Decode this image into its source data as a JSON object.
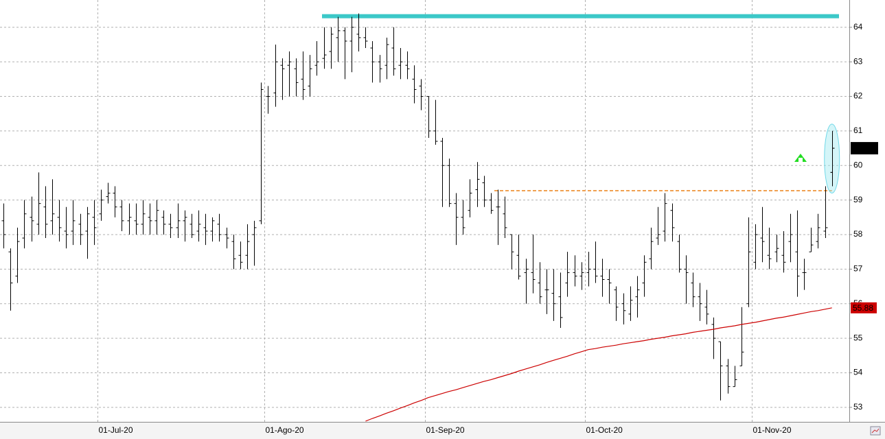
{
  "chart_data": {
    "type": "ohlc",
    "categories": [
      null,
      null,
      null,
      null,
      null,
      null,
      null,
      null,
      null,
      null,
      null,
      null,
      null,
      null,
      "01-Jul-20",
      null,
      null,
      null,
      null,
      null,
      null,
      null,
      null,
      null,
      null,
      null,
      null,
      null,
      null,
      null,
      null,
      null,
      null,
      null,
      null,
      null,
      null,
      null,
      "01-Ago-20",
      null,
      null,
      null,
      null,
      null,
      null,
      null,
      null,
      null,
      null,
      null,
      null,
      null,
      null,
      null,
      null,
      null,
      null,
      null,
      null,
      null,
      null,
      "01-Sep-20",
      null,
      null,
      null,
      null,
      null,
      null,
      null,
      null,
      null,
      null,
      null,
      null,
      null,
      null,
      null,
      null,
      null,
      null,
      null,
      null,
      null,
      null,
      "01-Oct-20",
      null,
      null,
      null,
      null,
      null,
      null,
      null,
      null,
      null,
      null,
      null,
      null,
      null,
      null,
      null,
      null,
      null,
      null,
      null,
      null,
      null,
      null,
      null,
      "01-Nov-20",
      null,
      null,
      null,
      null,
      null,
      null,
      null,
      null,
      null,
      null,
      null
    ],
    "series": [
      {
        "type": "ohlc",
        "color": "#000000",
        "open": [
          58.4,
          57.5,
          56.8,
          57.9,
          58.5,
          58.3,
          58.8,
          58.4,
          58.5,
          58.1,
          58.1,
          58.3,
          58.1,
          58.5,
          58.6,
          59.1,
          59.2,
          58.8,
          58.4,
          58.4,
          58.3,
          58.5,
          58.4,
          58.5,
          58.3,
          58.2,
          58.4,
          58.3,
          58.1,
          58.2,
          58.1,
          58.3,
          58.0,
          57.8,
          57.4,
          57.4,
          58.0,
          58.4,
          62.0,
          62.1,
          62.9,
          62.9,
          62.8,
          62.5,
          62.3,
          62.9,
          63.1,
          63.3,
          63.7,
          63.9,
          63.6,
          63.8,
          63.7,
          63.4,
          63.0,
          62.9,
          63.4,
          62.9,
          62.9,
          62.5,
          62.3,
          62.0,
          61.0,
          60.7,
          60.0,
          58.9,
          58.5,
          58.7,
          59.3,
          59.5,
          59.0,
          58.8,
          58.6,
          58.0,
          57.4,
          56.9,
          56.9,
          56.6,
          56.4,
          56.3,
          56.2,
          56.6,
          56.9,
          56.8,
          56.9,
          57.0,
          56.8,
          56.7,
          56.4,
          56.0,
          55.7,
          56.2,
          56.6,
          57.3,
          57.9,
          58.1,
          58.7,
          57.8,
          57.0,
          56.6,
          56.2,
          55.9,
          55.4,
          54.9,
          54.2,
          53.6,
          54.2,
          56.0,
          57.2,
          57.9,
          57.4,
          57.5,
          57.4,
          57.8,
          57.5,
          56.9,
          57.5,
          57.8,
          58.1,
          59.8
        ],
        "high": [
          58.9,
          57.6,
          58.2,
          59.0,
          59.1,
          59.8,
          59.4,
          59.6,
          59.0,
          58.8,
          59.0,
          58.6,
          58.8,
          59.0,
          59.3,
          59.5,
          59.4,
          59.0,
          58.9,
          58.9,
          59.0,
          58.9,
          59.0,
          58.7,
          58.6,
          58.9,
          58.7,
          58.6,
          58.7,
          58.6,
          58.5,
          58.6,
          58.2,
          58.0,
          57.8,
          58.3,
          58.4,
          62.4,
          62.3,
          63.5,
          63.1,
          63.3,
          63.1,
          63.3,
          63.2,
          63.6,
          64.0,
          64.0,
          64.3,
          64.0,
          64.3,
          64.4,
          64.0,
          63.6,
          63.2,
          63.7,
          64.0,
          63.4,
          63.3,
          62.9,
          62.5,
          62.0,
          61.9,
          60.8,
          60.2,
          59.2,
          59.0,
          59.6,
          60.1,
          59.7,
          59.2,
          59.3,
          59.1,
          58.0,
          58.0,
          57.3,
          58.0,
          57.2,
          57.0,
          57.0,
          56.9,
          57.5,
          57.4,
          57.2,
          57.5,
          57.8,
          57.3,
          57.0,
          56.5,
          56.3,
          56.5,
          56.8,
          57.4,
          58.2,
          58.8,
          59.2,
          58.9,
          58.0,
          57.4,
          56.9,
          56.6,
          56.4,
          55.6,
          54.9,
          54.4,
          54.2,
          55.9,
          58.5,
          58.3,
          58.8,
          58.2,
          58.0,
          58.1,
          58.6,
          58.7,
          57.3,
          58.2,
          58.6,
          59.4,
          61.0
        ],
        "low": [
          57.6,
          55.8,
          56.6,
          57.6,
          57.8,
          58.0,
          57.9,
          58.0,
          57.8,
          57.6,
          57.7,
          57.7,
          57.3,
          57.7,
          58.4,
          58.9,
          58.5,
          58.1,
          58.0,
          58.0,
          58.0,
          58.0,
          58.0,
          58.0,
          57.9,
          57.9,
          57.8,
          57.9,
          57.8,
          57.7,
          57.8,
          57.8,
          57.6,
          57.0,
          57.0,
          57.0,
          57.1,
          58.3,
          61.5,
          61.7,
          61.9,
          62.0,
          62.0,
          61.9,
          62.0,
          62.6,
          62.8,
          62.8,
          63.0,
          62.5,
          62.7,
          63.3,
          63.4,
          62.4,
          62.4,
          62.5,
          62.6,
          62.5,
          62.5,
          61.8,
          61.6,
          60.8,
          60.6,
          58.8,
          58.8,
          57.7,
          58.0,
          58.5,
          58.8,
          58.8,
          58.6,
          57.7,
          57.9,
          57.0,
          56.7,
          56.0,
          56.3,
          56.0,
          55.7,
          55.5,
          55.3,
          56.2,
          56.5,
          56.4,
          56.5,
          56.6,
          56.2,
          56.0,
          55.5,
          55.4,
          55.5,
          55.6,
          56.2,
          57.0,
          57.7,
          57.8,
          57.8,
          56.9,
          56.0,
          55.9,
          55.5,
          55.4,
          54.4,
          53.2,
          53.4,
          53.6,
          54.2,
          55.9,
          57.0,
          57.2,
          57.0,
          57.2,
          56.9,
          57.2,
          56.2,
          56.4,
          57.5,
          57.6,
          57.9,
          59.4
        ],
        "close": [
          58.0,
          56.6,
          57.8,
          58.6,
          58.4,
          58.9,
          58.3,
          58.6,
          58.2,
          58.0,
          58.4,
          58.0,
          58.6,
          58.2,
          59.0,
          59.2,
          58.8,
          58.4,
          58.5,
          58.3,
          58.6,
          58.4,
          58.7,
          58.3,
          58.2,
          58.4,
          58.5,
          58.0,
          58.3,
          58.1,
          58.4,
          58.0,
          57.9,
          57.3,
          57.2,
          57.8,
          58.2,
          62.2,
          62.0,
          63.0,
          62.8,
          63.0,
          62.4,
          62.2,
          62.8,
          63.0,
          63.2,
          63.8,
          63.9,
          63.6,
          64.0,
          63.7,
          63.6,
          63.0,
          62.8,
          63.5,
          62.8,
          63.0,
          62.8,
          62.2,
          62.0,
          61.0,
          60.7,
          60.0,
          58.9,
          58.5,
          58.2,
          59.2,
          59.6,
          59.0,
          58.7,
          58.8,
          58.2,
          57.5,
          56.8,
          57.0,
          56.7,
          56.2,
          56.4,
          56.0,
          55.6,
          56.9,
          56.8,
          56.9,
          57.0,
          56.8,
          56.7,
          56.6,
          55.9,
          55.8,
          56.1,
          56.4,
          57.2,
          57.8,
          58.0,
          58.9,
          58.2,
          57.0,
          56.9,
          56.2,
          56.0,
          55.7,
          55.0,
          54.2,
          53.6,
          53.8,
          54.6,
          57.5,
          58.0,
          57.8,
          57.3,
          57.6,
          57.2,
          58.0,
          56.8,
          56.9,
          57.7,
          58.2,
          58.2,
          60.5
        ]
      },
      {
        "type": "line",
        "color": "#cc0000",
        "values": [
          null,
          null,
          null,
          null,
          null,
          null,
          null,
          null,
          null,
          null,
          null,
          null,
          null,
          null,
          null,
          null,
          null,
          null,
          null,
          null,
          null,
          null,
          null,
          null,
          null,
          null,
          null,
          null,
          null,
          null,
          null,
          null,
          null,
          null,
          null,
          null,
          null,
          null,
          null,
          null,
          null,
          null,
          null,
          null,
          null,
          null,
          null,
          null,
          null,
          null,
          null,
          null,
          52.6,
          52.68,
          52.75,
          52.83,
          52.9,
          52.98,
          53.05,
          53.13,
          53.2,
          53.28,
          53.34,
          53.4,
          53.46,
          53.51,
          53.57,
          53.63,
          53.69,
          53.75,
          53.8,
          53.86,
          53.92,
          53.98,
          54.05,
          54.11,
          54.17,
          54.23,
          54.3,
          54.36,
          54.42,
          54.48,
          54.55,
          54.61,
          54.67,
          54.7,
          54.74,
          54.77,
          54.8,
          54.84,
          54.87,
          54.9,
          54.93,
          54.97,
          55.0,
          55.03,
          55.07,
          55.1,
          55.13,
          55.17,
          55.2,
          55.23,
          55.26,
          55.3,
          55.33,
          55.36,
          55.4,
          55.43,
          55.46,
          55.5,
          55.54,
          55.58,
          55.61,
          55.65,
          55.69,
          55.73,
          55.77,
          55.8,
          55.84,
          55.88
        ]
      }
    ],
    "levels": [
      {
        "value": 64.32,
        "color": "#3cc8c8",
        "style": "solid"
      },
      {
        "value": 59.27,
        "color": "#f0a050",
        "style": "dashed"
      }
    ],
    "ylim": [
      52.58,
      64.79
    ],
    "yticks": [
      53,
      54,
      55,
      56,
      57,
      58,
      59,
      60,
      61,
      62,
      63,
      64
    ],
    "grid": true
  }
}
